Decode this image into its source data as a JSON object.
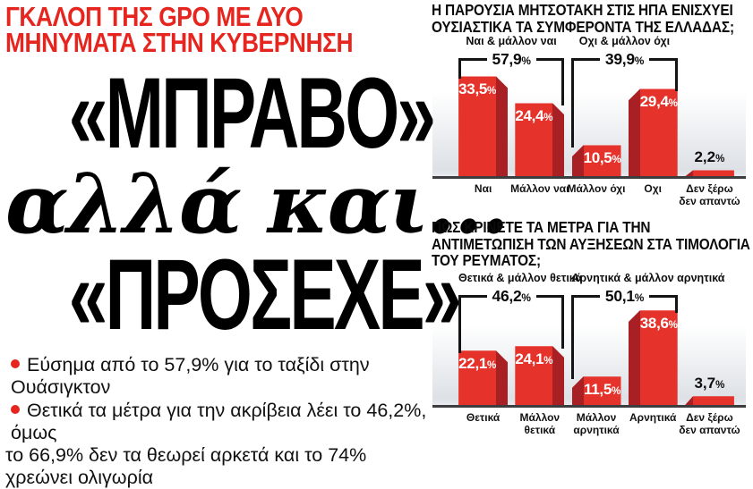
{
  "page": {
    "kicker_lines": [
      "ΓΚΑΛΟΠ ΤΗΣ GPO ΜΕ ΔΥΟ",
      "ΜΗΝΥΜΑΤΑ ΣΤΗΝ ΚΥΒΕΡΝΗΣΗ"
    ],
    "headline": {
      "line1": "«ΜΠΡΑΒΟ»",
      "line2": "αλλά και...",
      "line3": "«ΠΡΟΣΕΧΕ»"
    },
    "bullet_lines": [
      {
        "text": "Εύσημα από το 57,9% για το ταξίδι στην Ουάσιγκτον",
        "dot": true
      },
      {
        "text": "Θετικά τα μέτρα για την ακρίβεια λέει το 46,2%, όμως",
        "dot": true
      },
      {
        "text": "το 66,9% δεν τα θεωρεί αρκετά και το 74% χρεώνει ολιγωρία",
        "dot": false
      }
    ]
  },
  "colors": {
    "accent_red": "#e6251f",
    "bar_red": "#e5332b",
    "bar_red_dark": "#a92024",
    "baseline_gray": "#3d3d40",
    "text_black": "#121212"
  },
  "chart_data": [
    {
      "type": "bar",
      "title": "Η ΠΑΡΟΥΣΙΑ ΜΗΤΣΟΤΑΚΗ ΣΤΙΣ ΗΠΑ ΕΝΙΣΧΥΕΙ ΟΥΣΙΑΣΤΙΚΑ ΤΑ ΣΥΜΦΕΡΟΝΤΑ ΤΗΣ ΕΛΛΑΔΑΣ;",
      "categories": [
        "Ναι",
        "Μάλλον ναι",
        "Μάλλον όχι",
        "Οχι",
        "Δεν ξέρω δεν απαντώ"
      ],
      "values": [
        33.5,
        24.4,
        10.5,
        29.4,
        2.2
      ],
      "value_labels": [
        "33,5%",
        "24,4%",
        "10,5%",
        "29,4%",
        "2,2%"
      ],
      "groups": [
        {
          "label": "Ναι & μάλλον ναι",
          "value": 57.9,
          "value_label": "57,9%",
          "span": [
            0,
            1
          ]
        },
        {
          "label": "Οχι & μάλλον όχι",
          "value": 39.9,
          "value_label": "39,9%",
          "span": [
            2,
            3
          ]
        }
      ],
      "unit": "%",
      "ylim": [
        0,
        35
      ],
      "grid": false,
      "legend": false
    },
    {
      "type": "bar",
      "title": "ΠΩΣ ΚΡΙΝΕΤΕ ΤΑ ΜΕΤΡΑ ΓΙΑ ΤΗΝ ΑΝΤΙΜΕΤΩΠΙΣΗ ΤΩΝ ΑΥΞΗΣΕΩΝ ΣΤΑ ΤΙΜΟΛΟΓΙΑ ΤΟΥ ΡΕΥΜΑΤΟΣ;",
      "categories": [
        "Θετικά",
        "Μάλλον θετικά",
        "Μάλλον αρνητικά",
        "Αρνητικά",
        "Δεν ξέρω δεν απαντώ"
      ],
      "values": [
        22.1,
        24.1,
        11.5,
        38.6,
        3.7
      ],
      "value_labels": [
        "22,1%",
        "24,1%",
        "11,5%",
        "38,6%",
        "3,7%"
      ],
      "groups": [
        {
          "label": "Θετικά & μάλλον θετικά",
          "value": 46.2,
          "value_label": "46,2%",
          "span": [
            0,
            1
          ]
        },
        {
          "label": "Αρνητικά & μάλλον αρνητικά",
          "value": 50.1,
          "value_label": "50,1%",
          "span": [
            2,
            3
          ]
        }
      ],
      "unit": "%",
      "ylim": [
        0,
        40
      ],
      "grid": false,
      "legend": false
    }
  ]
}
